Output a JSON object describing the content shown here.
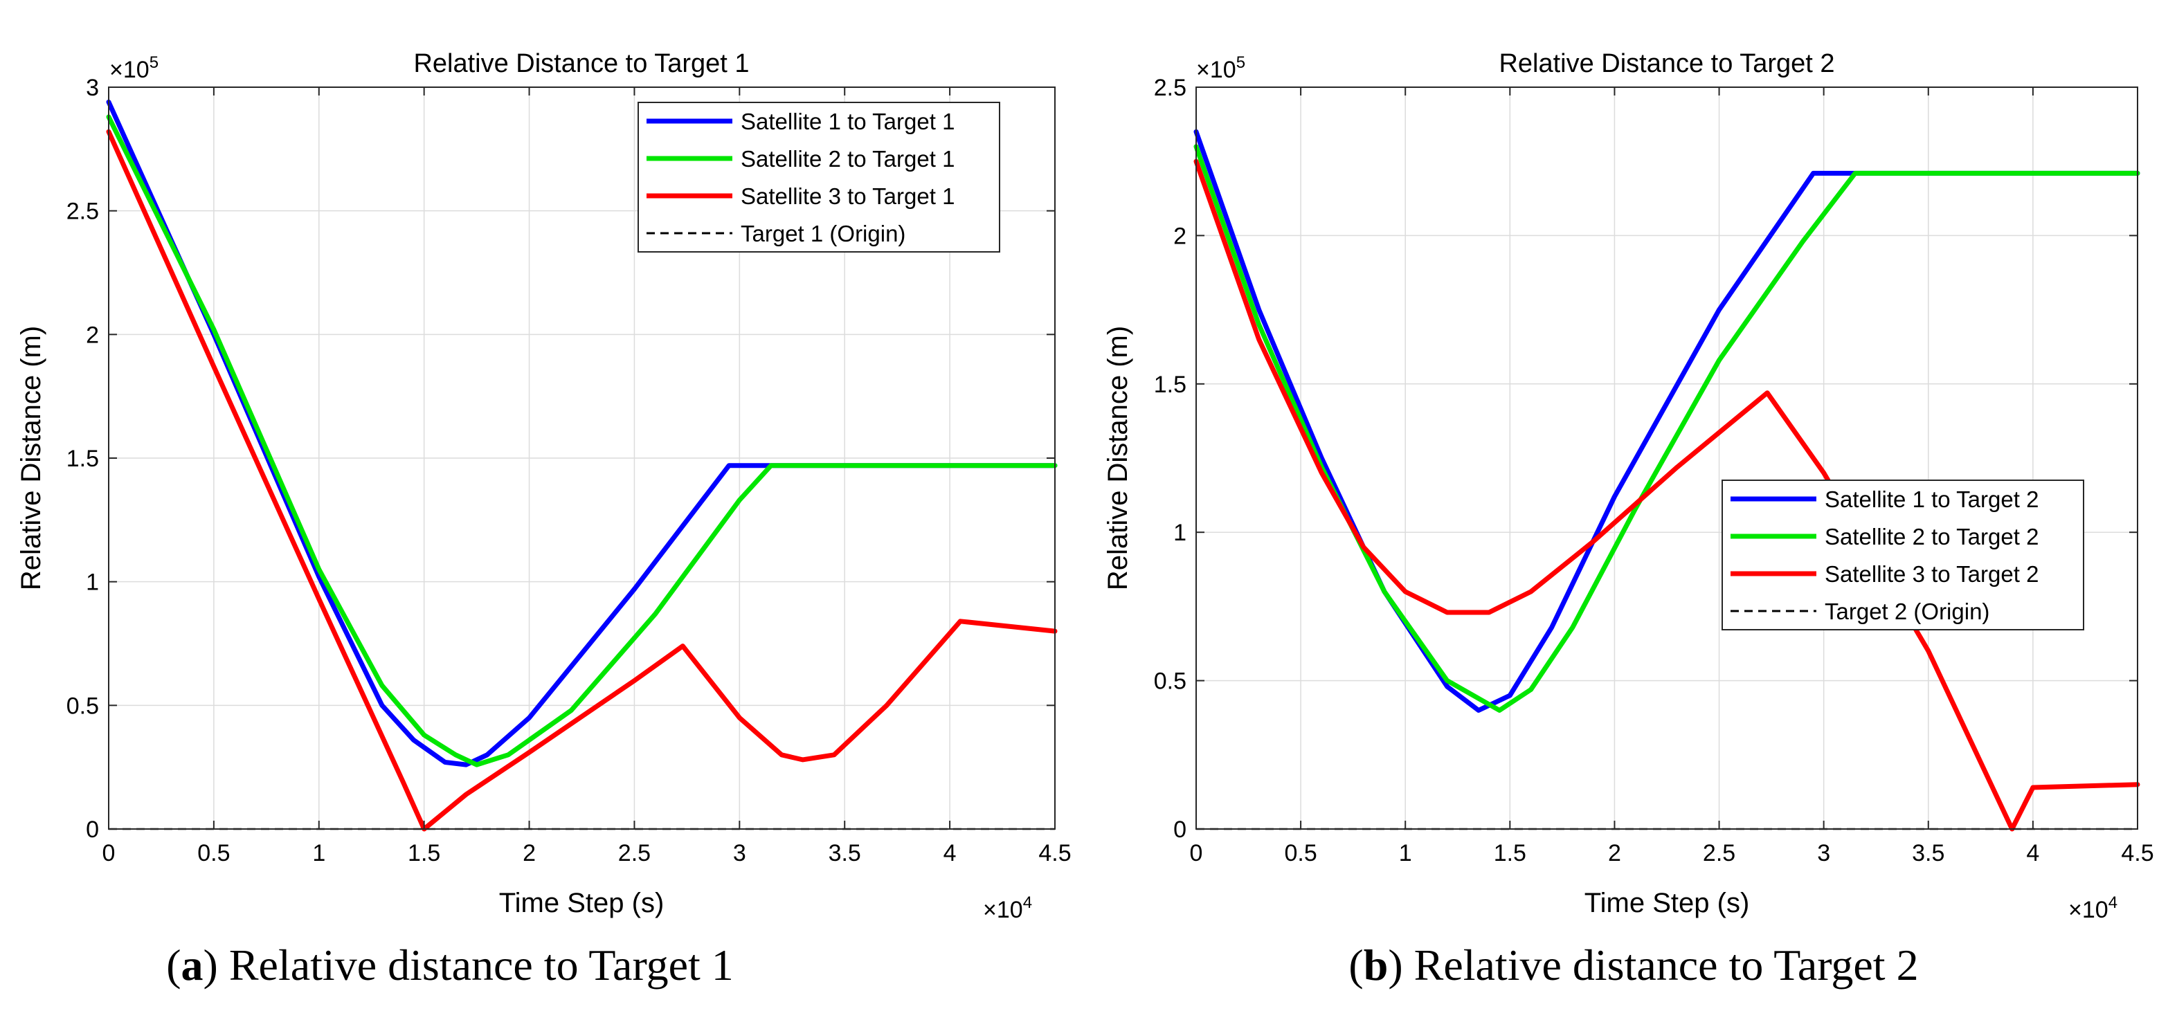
{
  "chart_data": [
    {
      "type": "line",
      "panel": "a",
      "title": "Relative Distance to Target 1",
      "xlabel": "Time Step (s)",
      "ylabel": "Relative Distance (m)",
      "x_multiplier_label": "×10",
      "x_multiplier_exp": "4",
      "y_multiplier_label": "×10",
      "y_multiplier_exp": "5",
      "xlim": [
        0,
        4.5
      ],
      "ylim": [
        0,
        3
      ],
      "xticks": [
        0,
        0.5,
        1,
        1.5,
        2,
        2.5,
        3,
        3.5,
        4,
        4.5
      ],
      "xtick_labels": [
        "0",
        "0.5",
        "1",
        "1.5",
        "2",
        "2.5",
        "3",
        "3.5",
        "4",
        "4.5"
      ],
      "yticks": [
        0,
        0.5,
        1,
        1.5,
        2,
        2.5,
        3
      ],
      "ytick_labels": [
        "0",
        "0.5",
        "1",
        "1.5",
        "2",
        "2.5",
        "3"
      ],
      "grid": true,
      "legend_position": "top-right",
      "caption_prefix": "a",
      "caption_text": "Relative distance to Target 1",
      "series": [
        {
          "name": "Satellite 1 to Target 1",
          "color": "#0000ff",
          "style": "solid",
          "x": [
            0,
            0.5,
            1.0,
            1.3,
            1.45,
            1.6,
            1.7,
            1.8,
            2.0,
            2.5,
            2.95,
            3.1,
            4.5
          ],
          "y": [
            2.94,
            2.0,
            1.02,
            0.5,
            0.36,
            0.27,
            0.26,
            0.3,
            0.45,
            0.97,
            1.47,
            1.47,
            1.47
          ]
        },
        {
          "name": "Satellite 2 to Target 1",
          "color": "#00e600",
          "style": "solid",
          "x": [
            0,
            0.5,
            1.0,
            1.3,
            1.5,
            1.65,
            1.75,
            1.9,
            2.2,
            2.6,
            3.0,
            3.15,
            4.5
          ],
          "y": [
            2.88,
            2.02,
            1.05,
            0.58,
            0.38,
            0.3,
            0.26,
            0.3,
            0.48,
            0.87,
            1.33,
            1.47,
            1.47
          ]
        },
        {
          "name": "Satellite 3 to Target 1",
          "color": "#ff0000",
          "style": "solid",
          "x": [
            0,
            0.5,
            1.0,
            1.4,
            1.5,
            1.7,
            2.0,
            2.5,
            2.73,
            3.0,
            3.2,
            3.3,
            3.45,
            3.7,
            4.05,
            4.5
          ],
          "y": [
            2.82,
            1.87,
            0.93,
            0.19,
            0.0,
            0.14,
            0.31,
            0.6,
            0.74,
            0.45,
            0.3,
            0.28,
            0.3,
            0.5,
            0.84,
            0.8
          ]
        },
        {
          "name": "Target 1 (Origin)",
          "color": "#000000",
          "style": "dashed",
          "x": [
            0,
            4.5
          ],
          "y": [
            0,
            0
          ]
        }
      ]
    },
    {
      "type": "line",
      "panel": "b",
      "title": "Relative Distance to Target 2",
      "xlabel": "Time Step (s)",
      "ylabel": "Relative Distance (m)",
      "x_multiplier_label": "×10",
      "x_multiplier_exp": "4",
      "y_multiplier_label": "×10",
      "y_multiplier_exp": "5",
      "xlim": [
        0,
        4.5
      ],
      "ylim": [
        0,
        2.5
      ],
      "xticks": [
        0,
        0.5,
        1,
        1.5,
        2,
        2.5,
        3,
        3.5,
        4,
        4.5
      ],
      "xtick_labels": [
        "0",
        "0.5",
        "1",
        "1.5",
        "2",
        "2.5",
        "3",
        "3.5",
        "4",
        "4.5"
      ],
      "yticks": [
        0,
        0.5,
        1,
        1.5,
        2,
        2.5
      ],
      "ytick_labels": [
        "0",
        "0.5",
        "1",
        "1.5",
        "2",
        "2.5"
      ],
      "grid": true,
      "legend_position": "center-right",
      "caption_prefix": "b",
      "caption_text": "Relative distance to Target 2",
      "series": [
        {
          "name": "Satellite 1 to Target 2",
          "color": "#0000ff",
          "style": "solid",
          "x": [
            0,
            0.3,
            0.6,
            0.9,
            1.2,
            1.35,
            1.5,
            1.7,
            2.0,
            2.5,
            2.95,
            3.1,
            4.5
          ],
          "y": [
            2.35,
            1.75,
            1.25,
            0.8,
            0.48,
            0.4,
            0.45,
            0.68,
            1.12,
            1.75,
            2.21,
            2.21,
            2.21
          ]
        },
        {
          "name": "Satellite 2 to Target 2",
          "color": "#00e600",
          "style": "solid",
          "x": [
            0,
            0.3,
            0.6,
            0.9,
            1.2,
            1.45,
            1.6,
            1.8,
            2.1,
            2.5,
            2.9,
            3.15,
            4.5
          ],
          "y": [
            2.3,
            1.7,
            1.22,
            0.8,
            0.5,
            0.4,
            0.47,
            0.68,
            1.08,
            1.58,
            1.98,
            2.21,
            2.21
          ]
        },
        {
          "name": "Satellite 3 to Target 2",
          "color": "#ff0000",
          "style": "solid",
          "x": [
            0,
            0.3,
            0.6,
            0.8,
            1.0,
            1.2,
            1.4,
            1.6,
            1.9,
            2.3,
            2.73,
            3.0,
            3.5,
            3.9,
            4.0,
            4.5
          ],
          "y": [
            2.25,
            1.65,
            1.2,
            0.95,
            0.8,
            0.73,
            0.73,
            0.8,
            0.97,
            1.22,
            1.47,
            1.2,
            0.6,
            0.0,
            0.14,
            0.15
          ]
        },
        {
          "name": "Target 2 (Origin)",
          "color": "#000000",
          "style": "dashed",
          "x": [
            0,
            4.5
          ],
          "y": [
            0,
            0
          ]
        }
      ]
    }
  ]
}
